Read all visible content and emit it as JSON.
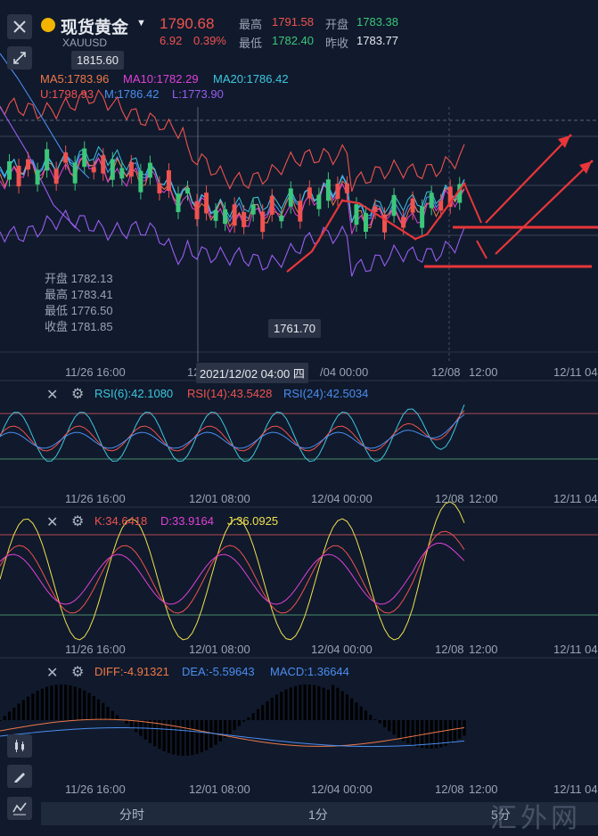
{
  "header": {
    "title": "现货黄金",
    "symbol": "XAUUSD",
    "price": "1790.68",
    "change": "6.92",
    "change_pct": "0.39%",
    "high_label": "最高",
    "high": "1791.58",
    "open_label": "开盘",
    "open": "1783.38",
    "low_label": "最低",
    "low": "1782.40",
    "prev_label": "昨收",
    "prev": "1783.77"
  },
  "main_chart": {
    "high_marker": "1815.60",
    "low_marker": "1761.70",
    "ma5": "MA5:1783.96",
    "ma10": "MA10:1782.29",
    "ma20": "MA20:1786.42",
    "boll_u": "U:1798.93",
    "boll_m": "M:1786.42",
    "boll_l": "L:1773.90",
    "ohlc_open": "开盘 1782.13",
    "ohlc_high": "最高 1783.41",
    "ohlc_low": "最低 1776.50",
    "ohlc_close": "收盘 1781.85",
    "crosshair_time": "2021/12/02 04:00 四",
    "x_labels": [
      "11/26 16:00",
      "12",
      "/04 00:00",
      "12/08",
      "12:00",
      "12/11 04"
    ]
  },
  "rsi": {
    "rsi6": "RSI(6):42.1080",
    "rsi14": "RSI(14):43.5428",
    "rsi24": "RSI(24):42.5034",
    "x_labels": [
      "11/26 16:00",
      "12/01 08:00",
      "12/04 00:00",
      "12/08",
      "12:00",
      "12/11 04"
    ]
  },
  "kdj": {
    "k": "K:34.6418",
    "d": "D:33.9164",
    "j": "J:36.0925",
    "x_labels": [
      "11/26 16:00",
      "12/01 08:00",
      "12/04 00:00",
      "12/08",
      "12:00",
      "12/11 04"
    ]
  },
  "macd": {
    "diff": "DIFF:-4.91321",
    "dea": "DEA:-5.59643",
    "macd": "MACD:1.36644",
    "x_labels": [
      "11/26 16:00",
      "12/01 08:00",
      "12/04 00:00",
      "12/08",
      "12:00",
      "12/11 04"
    ]
  },
  "tabs": {
    "t1": "分时",
    "t2": "1分",
    "t3": "5分"
  },
  "watermark": "汇外网",
  "colors": {
    "up": "#f0524f",
    "down": "#3cc67a",
    "ma5": "#f07848",
    "ma10": "#e040d8",
    "ma20": "#3ec6e0",
    "boll_m": "#4a8df0",
    "boll_l": "#9a5cf0",
    "annotation": "#e8363a"
  }
}
